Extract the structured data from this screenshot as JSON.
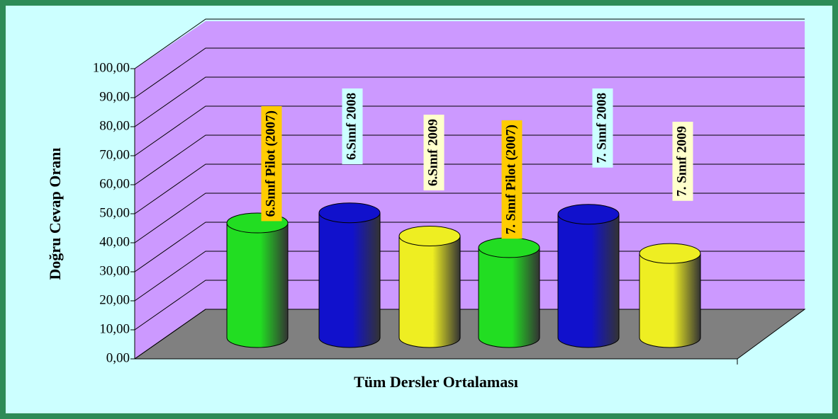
{
  "chart_data": {
    "type": "bar",
    "ylabel": "Doğru Cevap Oranı",
    "xlabel": "Tüm Dersler Ortalaması",
    "categories": [
      "6.Sınıf Pilot (2007)",
      "6.Sınıf 2008",
      "6.Sınıf 2009",
      "7. Sınıf Pilot (2007)",
      "7. Sınıf 2008",
      "7. Sınıf 2009"
    ],
    "values": [
      39.5,
      43,
      35,
      31,
      42.5,
      29
    ],
    "colors": [
      "#22dd22",
      "#1111cc",
      "#eeee22",
      "#22dd22",
      "#1111cc",
      "#eeee22"
    ],
    "label_colors": [
      "#ffcc00",
      "#ccffff",
      "#ffffcc",
      "#ffcc00",
      "#ccffff",
      "#ffffcc"
    ],
    "ylim": [
      0,
      100
    ],
    "yticks": [
      {
        "value": 0,
        "label": "0,00"
      },
      {
        "value": 10,
        "label": "10,00"
      },
      {
        "value": 20,
        "label": "20,00"
      },
      {
        "value": 30,
        "label": "30,00"
      },
      {
        "value": 40,
        "label": "40,00"
      },
      {
        "value": 50,
        "label": "50,00"
      },
      {
        "value": 60,
        "label": "60,00"
      },
      {
        "value": 70,
        "label": "70,00"
      },
      {
        "value": 80,
        "label": "80,00"
      },
      {
        "value": 90,
        "label": "90,00"
      },
      {
        "value": 100,
        "label": "100,00"
      }
    ],
    "grid": true
  }
}
